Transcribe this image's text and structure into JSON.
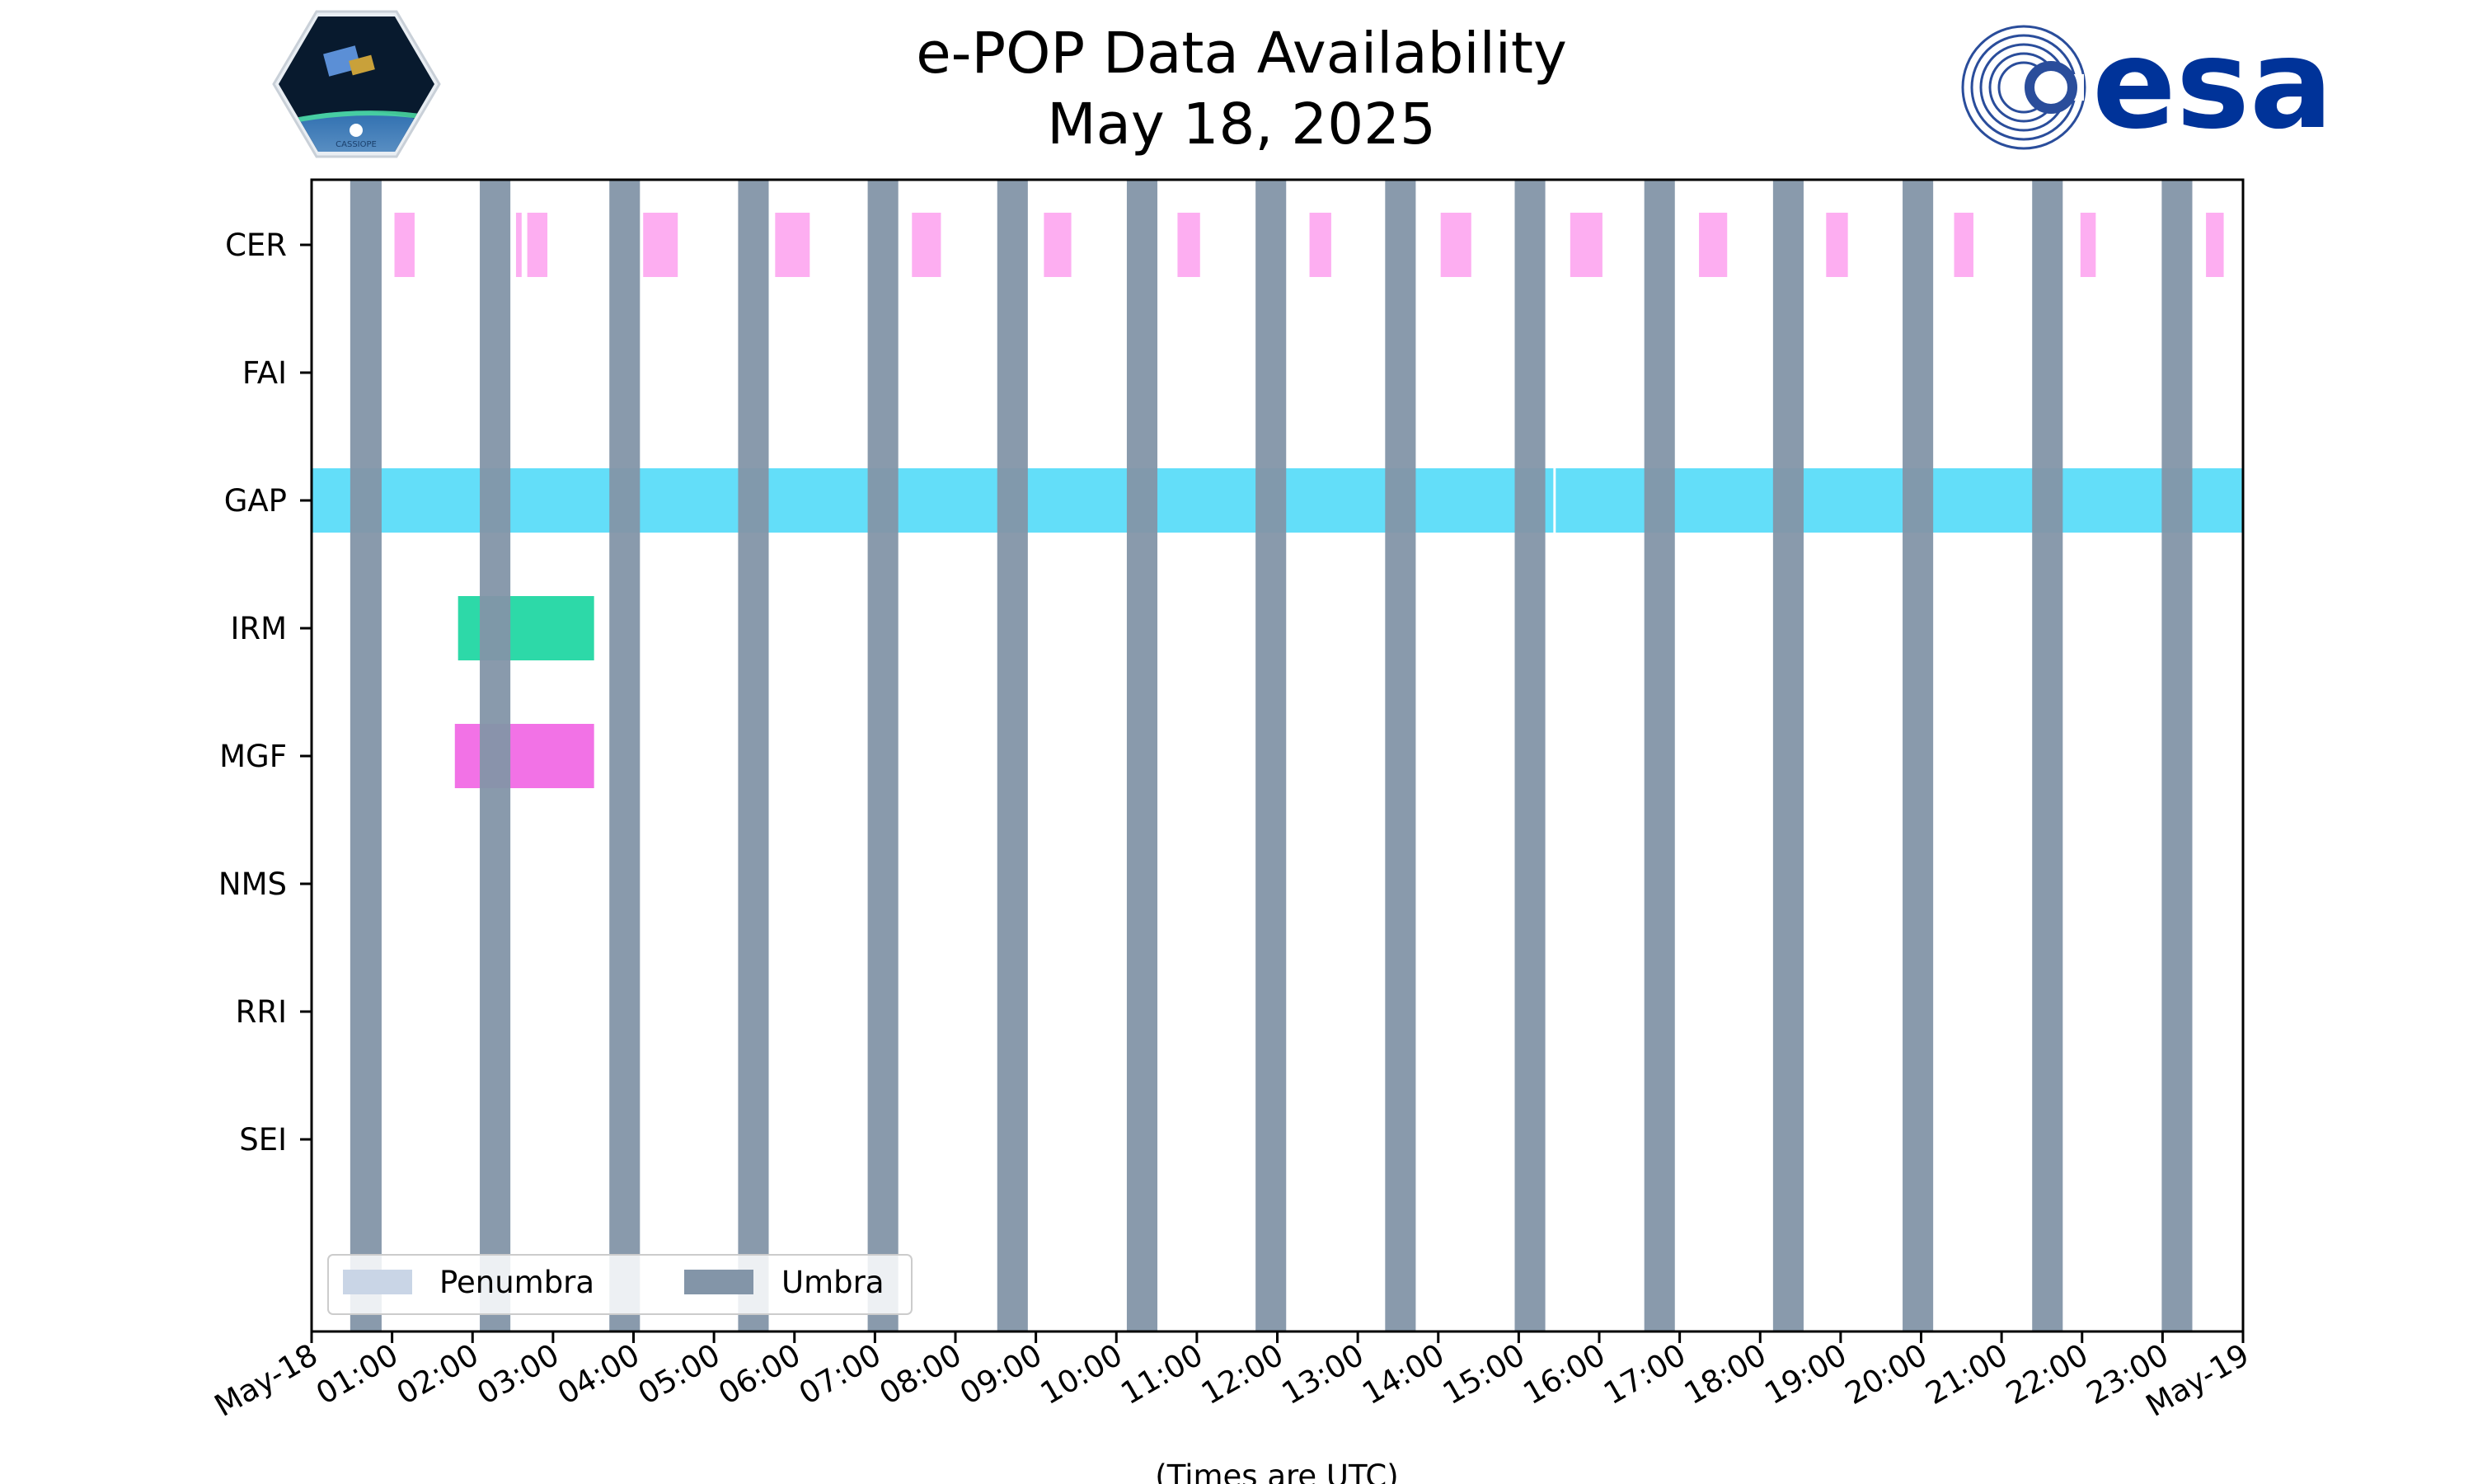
{
  "chart_data": {
    "type": "bar",
    "orientation": "horizontal-timeline",
    "title": "e-POP Data Availability",
    "subtitle": "May 18, 2025",
    "xlabel": "(Times are UTC)",
    "ylabel": "",
    "x_range_hours": [
      0,
      24
    ],
    "x_tick_labels": [
      "May-18",
      "01:00",
      "02:00",
      "03:00",
      "04:00",
      "05:00",
      "06:00",
      "07:00",
      "08:00",
      "09:00",
      "10:00",
      "11:00",
      "12:00",
      "13:00",
      "14:00",
      "15:00",
      "16:00",
      "17:00",
      "18:00",
      "19:00",
      "20:00",
      "21:00",
      "22:00",
      "23:00",
      "May-19"
    ],
    "categories": [
      "CER",
      "FAI",
      "GAP",
      "IRM",
      "MGF",
      "NMS",
      "RRI",
      "SEI"
    ],
    "legend": {
      "placement": "lower-left",
      "entries": [
        {
          "label": "Penumbra",
          "color": "#c9d5e6"
        },
        {
          "label": "Umbra",
          "color": "#8395a8"
        }
      ]
    },
    "umbra_intervals_hours": [
      [
        0.48,
        0.87
      ],
      [
        2.09,
        2.47
      ],
      [
        3.7,
        4.08
      ],
      [
        5.3,
        5.68
      ],
      [
        6.91,
        7.29
      ],
      [
        8.52,
        8.9
      ],
      [
        10.13,
        10.51
      ],
      [
        11.73,
        12.11
      ],
      [
        13.34,
        13.72
      ],
      [
        14.95,
        15.33
      ],
      [
        16.56,
        16.94
      ],
      [
        18.16,
        18.54
      ],
      [
        19.77,
        20.15
      ],
      [
        21.38,
        21.76
      ],
      [
        22.99,
        23.37
      ]
    ],
    "series": [
      {
        "instrument": "CER",
        "color": "#fdaef1",
        "intervals_hours": [
          [
            1.03,
            1.28
          ],
          [
            2.54,
            2.61
          ],
          [
            2.68,
            2.93
          ],
          [
            4.12,
            4.55
          ],
          [
            5.76,
            6.19
          ],
          [
            7.46,
            7.82
          ],
          [
            9.1,
            9.44
          ],
          [
            10.76,
            11.04
          ],
          [
            12.4,
            12.67
          ],
          [
            14.03,
            14.41
          ],
          [
            15.64,
            16.04
          ],
          [
            17.24,
            17.59
          ],
          [
            18.82,
            19.09
          ],
          [
            20.41,
            20.65
          ],
          [
            21.98,
            22.17
          ],
          [
            23.54,
            23.76
          ]
        ]
      },
      {
        "instrument": "GAP",
        "color": "#63def9",
        "intervals_hours": [
          [
            0.0,
            15.43
          ],
          [
            15.46,
            24.0
          ]
        ]
      },
      {
        "instrument": "IRM",
        "color": "#2dd9a8",
        "intervals_hours": [
          [
            1.82,
            3.51
          ]
        ]
      },
      {
        "instrument": "MGF",
        "color": "#f272e6",
        "intervals_hours": [
          [
            1.78,
            3.51
          ]
        ]
      }
    ]
  },
  "logos": {
    "left_mission_logo": {
      "icon": "cassiope-satellite-logo",
      "text": "CASSIOPE"
    },
    "right_agency_logo": {
      "icon": "esa-swirl-logo",
      "text": "esa",
      "color": "#003399"
    }
  }
}
